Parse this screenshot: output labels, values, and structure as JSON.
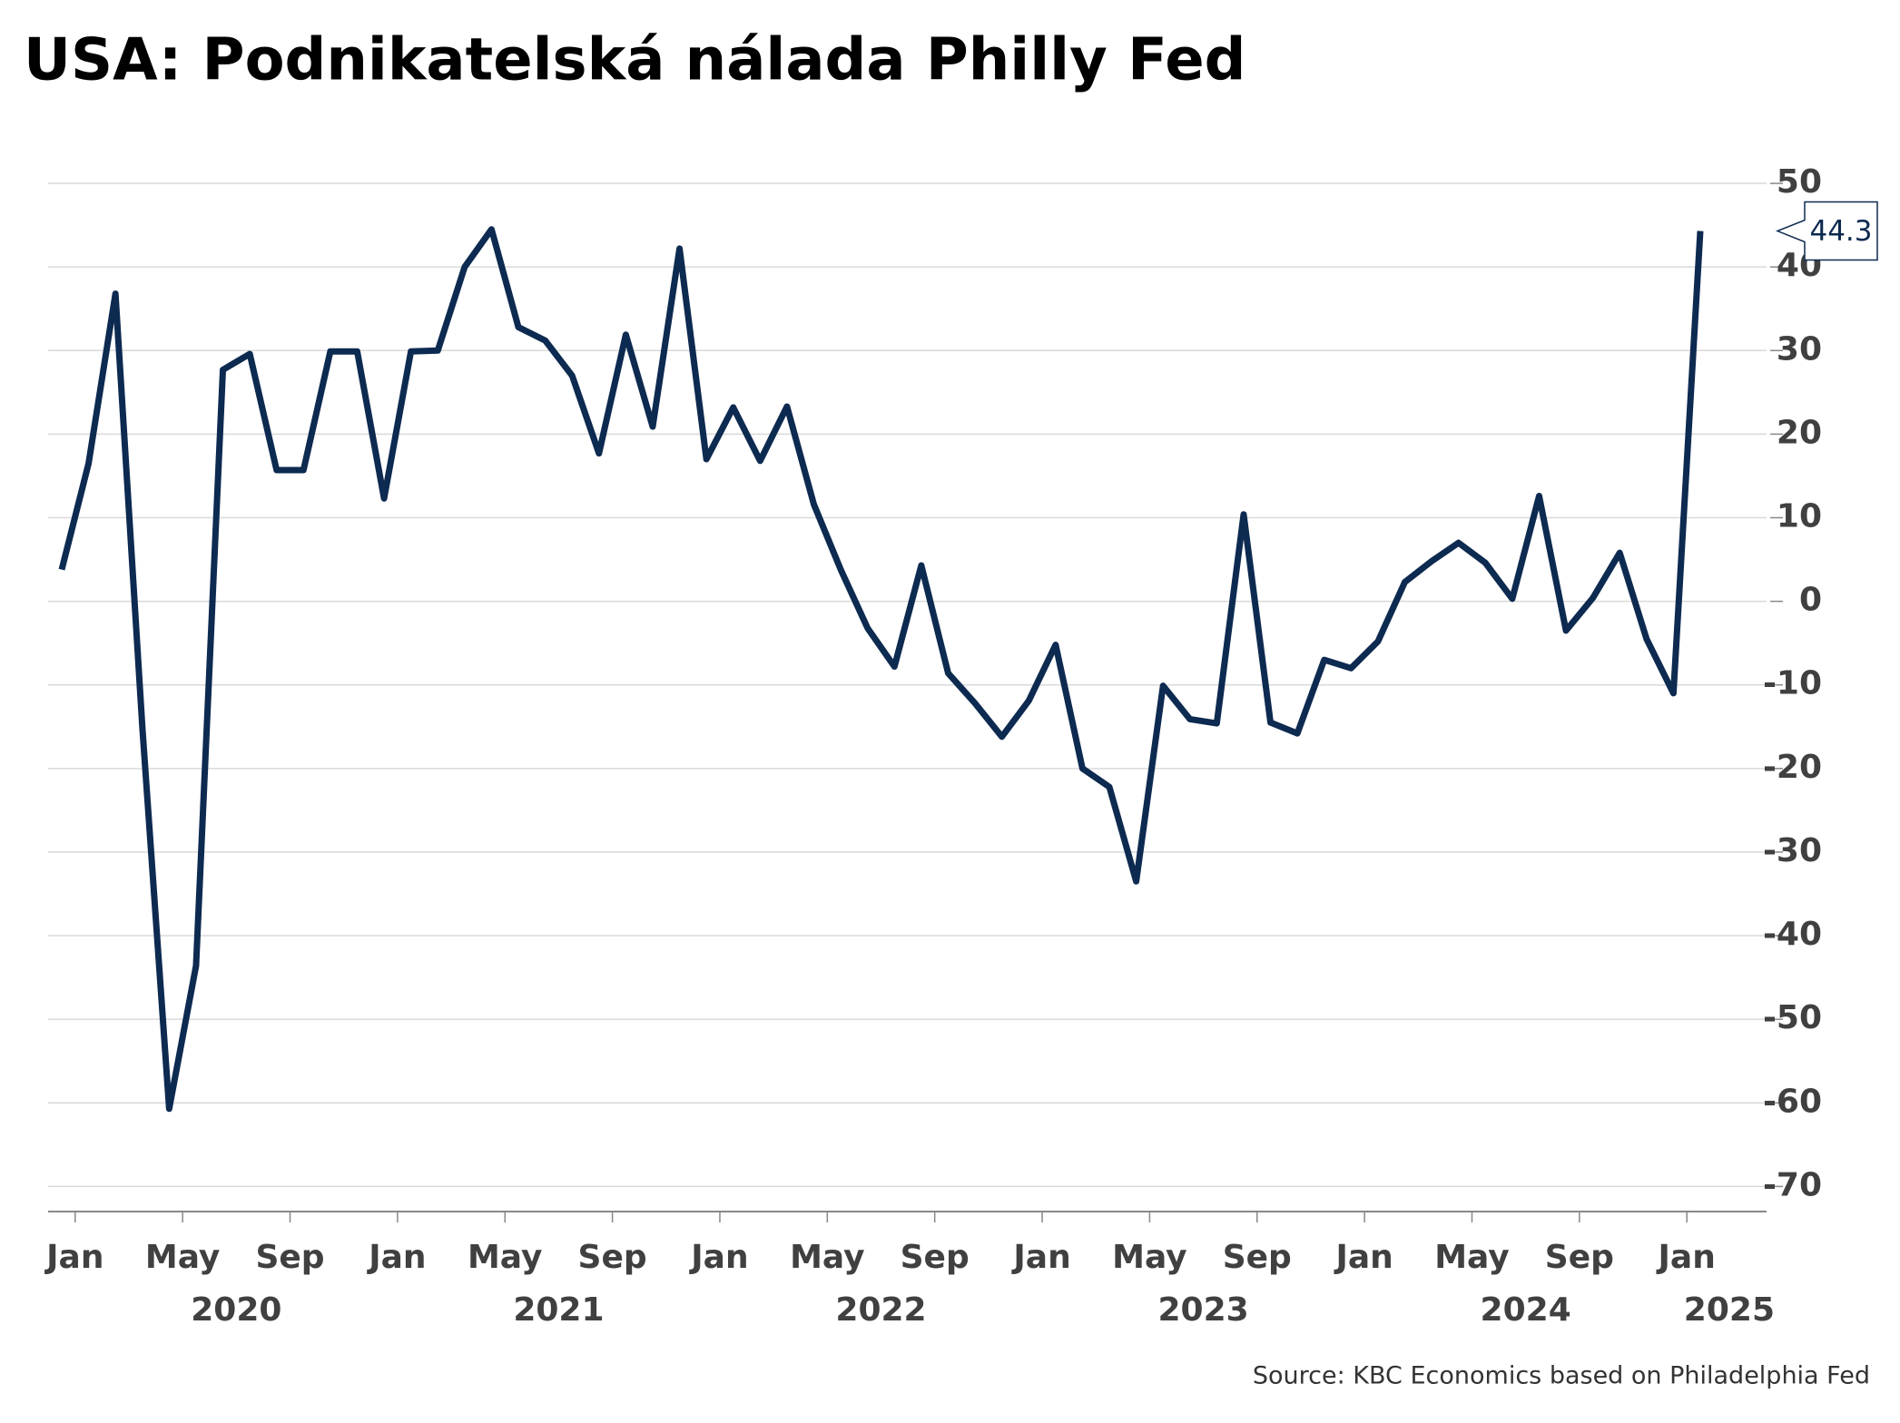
{
  "chart_data": {
    "type": "line",
    "title": "USA: Podnikatelská nálada Philly Fed",
    "source": "Source: KBC Economics based on Philadelphia Fed",
    "x": [
      "2019-12",
      "2020-01",
      "2020-02",
      "2020-03",
      "2020-04",
      "2020-05",
      "2020-06",
      "2020-07",
      "2020-08",
      "2020-09",
      "2020-10",
      "2020-11",
      "2020-12",
      "2021-01",
      "2021-02",
      "2021-03",
      "2021-04",
      "2021-05",
      "2021-06",
      "2021-07",
      "2021-08",
      "2021-09",
      "2021-10",
      "2021-11",
      "2021-12",
      "2022-01",
      "2022-02",
      "2022-03",
      "2022-04",
      "2022-05",
      "2022-06",
      "2022-07",
      "2022-08",
      "2022-09",
      "2022-10",
      "2022-11",
      "2022-12",
      "2023-01",
      "2023-02",
      "2023-03",
      "2023-04",
      "2023-05",
      "2023-06",
      "2023-07",
      "2023-08",
      "2023-09",
      "2023-10",
      "2023-11",
      "2023-12",
      "2024-01",
      "2024-02",
      "2024-03",
      "2024-04",
      "2024-05",
      "2024-06",
      "2024-07",
      "2024-08",
      "2024-09",
      "2024-10",
      "2024-11",
      "2024-12",
      "2025-01"
    ],
    "series": [
      {
        "name": "Philly Fed",
        "color": "#0d2a50",
        "values": [
          3.8,
          16.5,
          36.8,
          -15,
          -60.7,
          -43.6,
          27.7,
          29.6,
          15.7,
          15.7,
          29.9,
          29.9,
          12.3,
          29.9,
          30,
          40,
          44.5,
          32.8,
          31.2,
          27,
          17.7,
          31.9,
          20.9,
          42.2,
          17,
          23.2,
          16.8,
          23.3,
          11.6,
          3.8,
          -3.2,
          -7.8,
          4.3,
          -8.6,
          -12.2,
          -16.2,
          -11.9,
          -5.2,
          -20,
          -22.2,
          -33.5,
          -10.1,
          -14.1,
          -14.6,
          10.4,
          -14.5,
          -15.8,
          -7,
          -8,
          -4.8,
          2.3,
          4.8,
          7,
          4.6,
          0.3,
          12.6,
          -3.5,
          0.4,
          5.8,
          -4.5,
          -11,
          44.3
        ]
      }
    ],
    "xticks": [
      {
        "value": "2020-01",
        "label": "Jan"
      },
      {
        "value": "2020-05",
        "label": "May"
      },
      {
        "value": "2020-09",
        "label": "Sep"
      },
      {
        "value": "2021-01",
        "label": "Jan"
      },
      {
        "value": "2021-05",
        "label": "May"
      },
      {
        "value": "2021-09",
        "label": "Sep"
      },
      {
        "value": "2022-01",
        "label": "Jan"
      },
      {
        "value": "2022-05",
        "label": "May"
      },
      {
        "value": "2022-09",
        "label": "Sep"
      },
      {
        "value": "2023-01",
        "label": "Jan"
      },
      {
        "value": "2023-05",
        "label": "May"
      },
      {
        "value": "2023-09",
        "label": "Sep"
      },
      {
        "value": "2024-01",
        "label": "Jan"
      },
      {
        "value": "2024-05",
        "label": "May"
      },
      {
        "value": "2024-09",
        "label": "Sep"
      },
      {
        "value": "2025-01",
        "label": "Jan"
      }
    ],
    "year_labels": [
      "2020",
      "2021",
      "2022",
      "2023",
      "2024",
      "2025"
    ],
    "ylim": [
      -73,
      55
    ],
    "yticks": [
      -70,
      -60,
      -50,
      -40,
      -30,
      -20,
      -10,
      0,
      10,
      20,
      30,
      40,
      50
    ],
    "grid": true
  }
}
